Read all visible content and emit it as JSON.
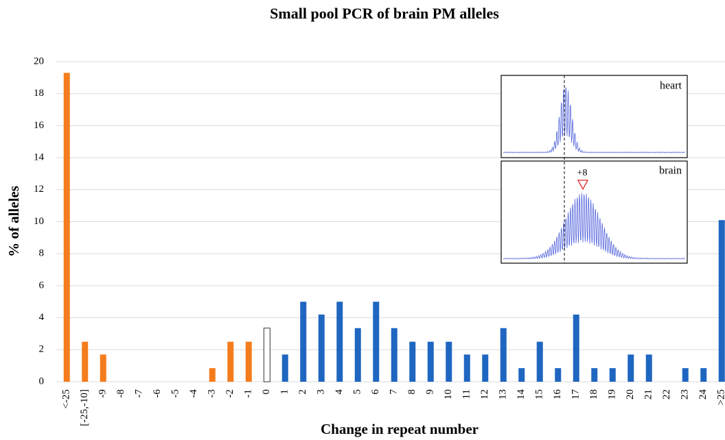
{
  "chart_data": {
    "type": "bar",
    "title": "Small pool PCR of brain PM alleles",
    "x_label": "Change in repeat number",
    "y_label": "% of alleles",
    "categories": [
      "<-25",
      "[-25,-10]",
      "-9",
      "-8",
      "-7",
      "-6",
      "-5",
      "-4",
      "-3",
      "-2",
      "-1",
      "0",
      "1",
      "2",
      "3",
      "4",
      "5",
      "6",
      "7",
      "8",
      "9",
      "10",
      "11",
      "12",
      "13",
      "14",
      "15",
      "16",
      "17",
      "18",
      "19",
      "20",
      "21",
      "22",
      "23",
      "24",
      ">25"
    ],
    "values": [
      19.3,
      2.5,
      1.7,
      0,
      0,
      0,
      0,
      0,
      0.85,
      2.5,
      2.5,
      3.35,
      1.7,
      5.0,
      4.2,
      5.0,
      3.35,
      5.0,
      3.35,
      2.5,
      2.5,
      2.5,
      1.7,
      1.7,
      3.35,
      0.85,
      2.5,
      0.85,
      4.2,
      0.85,
      0.85,
      1.7,
      1.7,
      0,
      0.85,
      0.85,
      10.1
    ],
    "colors": [
      "#f47c1c",
      "#f47c1c",
      "#f47c1c",
      "#f47c1c",
      "#f47c1c",
      "#f47c1c",
      "#f47c1c",
      "#f47c1c",
      "#f47c1c",
      "#f47c1c",
      "#f47c1c",
      "#ffffff",
      "#1f66c1",
      "#1f66c1",
      "#1f66c1",
      "#1f66c1",
      "#1f66c1",
      "#1f66c1",
      "#1f66c1",
      "#1f66c1",
      "#1f66c1",
      "#1f66c1",
      "#1f66c1",
      "#1f66c1",
      "#1f66c1",
      "#1f66c1",
      "#1f66c1",
      "#1f66c1",
      "#1f66c1",
      "#1f66c1",
      "#1f66c1",
      "#1f66c1",
      "#1f66c1",
      "#1f66c1",
      "#1f66c1",
      "#1f66c1",
      "#1f66c1"
    ],
    "ylim": [
      0,
      20
    ],
    "yticks": [
      0,
      2,
      4,
      6,
      8,
      10,
      12,
      14,
      16,
      18,
      20
    ],
    "grid": true,
    "inset": [
      {
        "label": "heart"
      },
      {
        "label": "brain",
        "annotation": "+8"
      }
    ]
  }
}
